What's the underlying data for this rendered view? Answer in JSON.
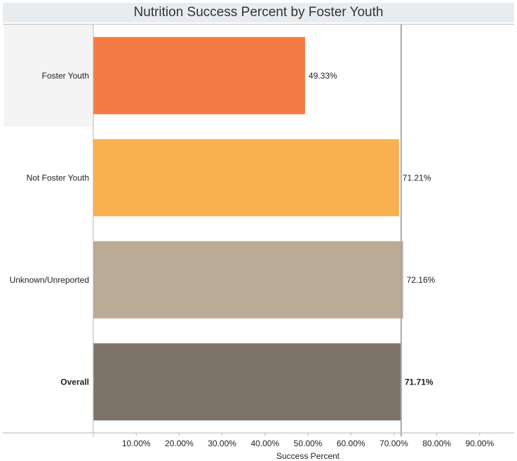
{
  "chart_data": {
    "type": "bar",
    "orientation": "horizontal",
    "title": "Nutrition Success Percent by Foster Youth",
    "xlabel": "Success Percent",
    "ylabel": "",
    "categories": [
      "Foster Youth",
      "Not Foster Youth",
      "Unknown/Unreported",
      "Overall"
    ],
    "values": [
      49.33,
      71.21,
      72.16,
      71.71
    ],
    "value_labels": [
      "49.33%",
      "71.21%",
      "72.16%",
      "71.71%"
    ],
    "bold_categories": [
      "Overall"
    ],
    "highlighted_category": "Foster Youth",
    "colors": [
      "#f47b43",
      "#f9b04f",
      "#baab96",
      "#7d7369"
    ],
    "reference_line": 71.71,
    "xlim": [
      0,
      100
    ],
    "xticks": [
      10,
      20,
      30,
      40,
      50,
      60,
      70,
      80,
      90
    ],
    "xtick_labels": [
      "10.00%",
      "20.00%",
      "30.00%",
      "40.00%",
      "50.00%",
      "60.00%",
      "70.00%",
      "80.00%",
      "90.00%"
    ],
    "grid": false,
    "legend": "none"
  }
}
